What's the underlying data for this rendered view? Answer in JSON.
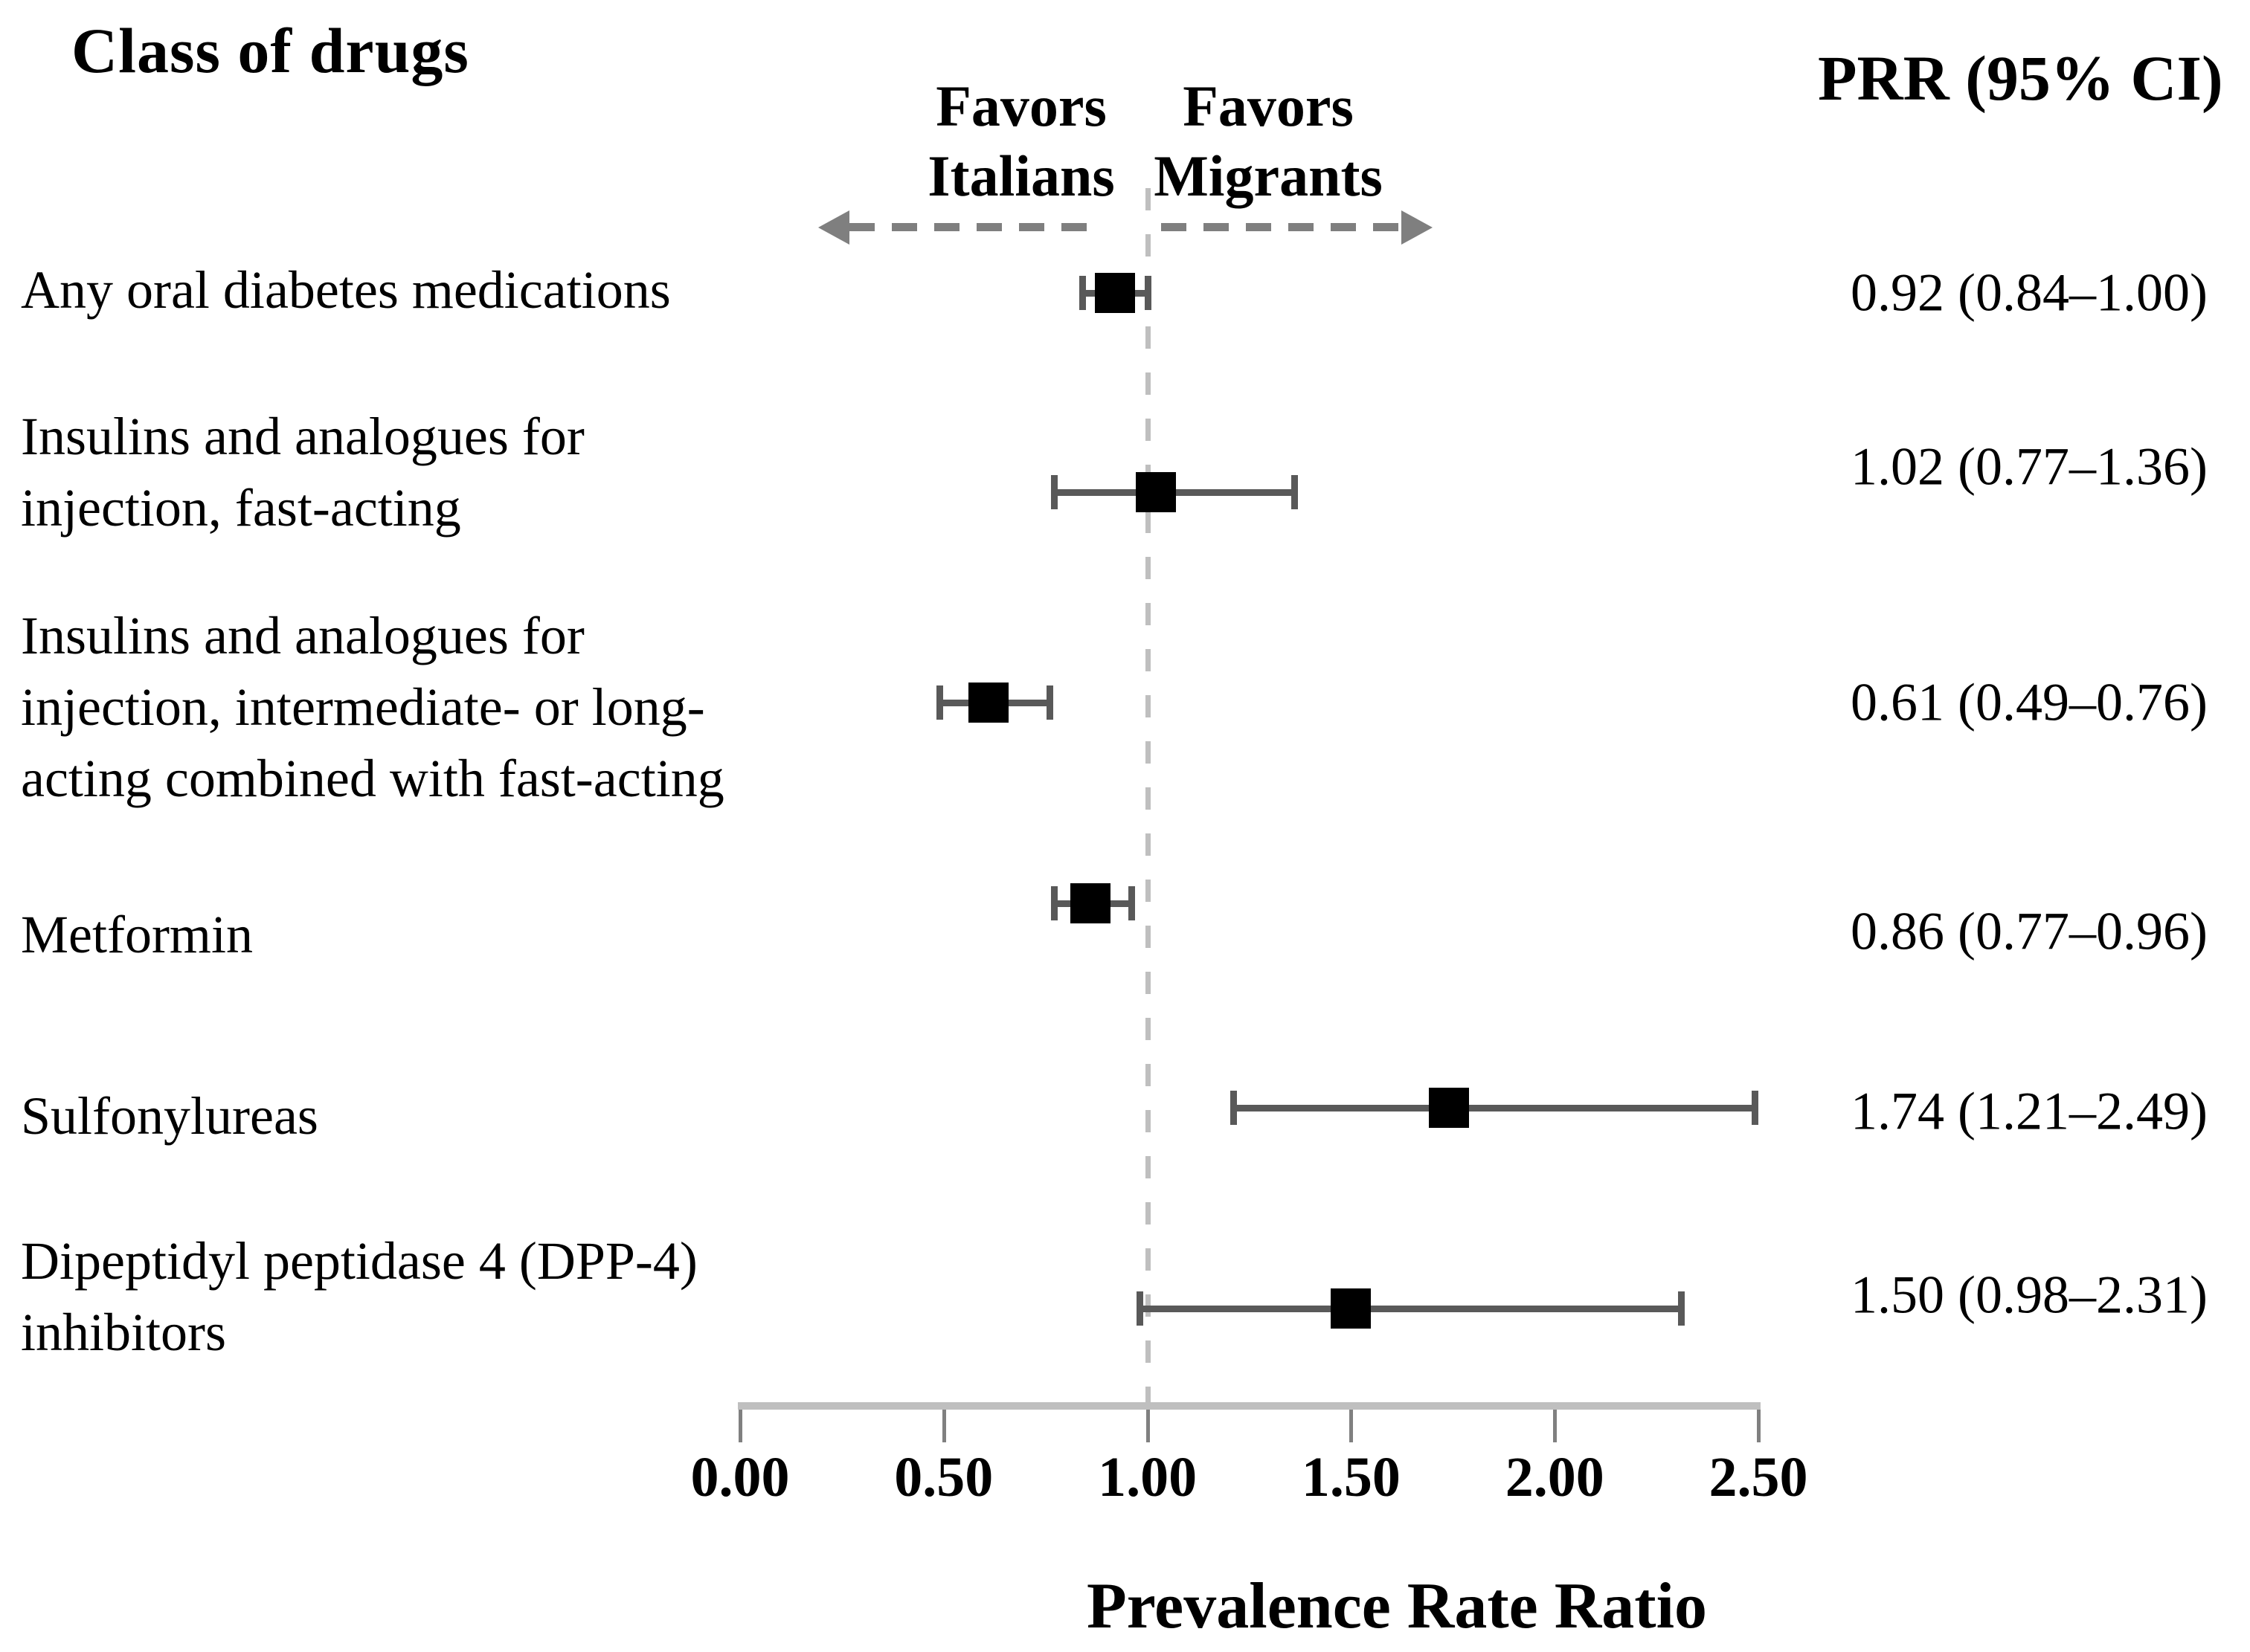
{
  "title": "Class of drugs",
  "prr_header": "PRR (95% CI)",
  "favors_left": "Favors\nItalians",
  "favors_right": "Favors\nMigrants",
  "axis": {
    "label": "Prevalence Rate Ratio",
    "tick_labels": [
      "0.00",
      "0.50",
      "1.00",
      "1.50",
      "2.00",
      "2.50"
    ],
    "tick_values": [
      0.0,
      0.5,
      1.0,
      1.5,
      2.0,
      2.5
    ],
    "min": 0.0,
    "max": 2.5,
    "reference_line": 1.0
  },
  "colors": {
    "marker": "#000000",
    "whisker": "#595959",
    "axis_line": "#bfbfbf",
    "tick": "#808080",
    "arrow": "#7f7f7f",
    "reference_dash": "#bfbfbf",
    "text": "#000000"
  },
  "chart_data": {
    "type": "scatter",
    "subtype": "forest-plot",
    "title": "Class of drugs",
    "xlabel": "Prevalence Rate Ratio",
    "xlim": [
      0.0,
      2.5
    ],
    "reference_line": 1.0,
    "value_column_header": "PRR (95% CI)",
    "direction_annotations": [
      "Favors Italians",
      "Favors Migrants"
    ],
    "rows": [
      {
        "label": "Any oral diabetes medications",
        "label_lines": [
          "Any oral diabetes medications"
        ],
        "prr": 0.92,
        "ci_low": 0.84,
        "ci_high": 1.0,
        "value_text": "0.92 (0.84–1.00)"
      },
      {
        "label": "Insulins and analogues for injection, fast-acting",
        "label_lines": [
          "Insulins and analogues for",
          "injection, fast-acting"
        ],
        "prr": 1.02,
        "ci_low": 0.77,
        "ci_high": 1.36,
        "value_text": "1.02 (0.77–1.36)"
      },
      {
        "label": "Insulins and analogues for injection, intermediate- or long-acting combined with fast-acting",
        "label_lines": [
          "Insulins and analogues for",
          "injection, intermediate- or long-",
          "acting combined with fast-acting"
        ],
        "prr": 0.61,
        "ci_low": 0.49,
        "ci_high": 0.76,
        "value_text": "0.61 (0.49–0.76)"
      },
      {
        "label": "Metformin",
        "label_lines": [
          "Metformin"
        ],
        "prr": 0.86,
        "ci_low": 0.77,
        "ci_high": 0.96,
        "value_text": "0.86 (0.77–0.96)"
      },
      {
        "label": "Sulfonylureas",
        "label_lines": [
          "Sulfonylureas"
        ],
        "prr": 1.74,
        "ci_low": 1.21,
        "ci_high": 2.49,
        "value_text": "1.74 (1.21–2.49)"
      },
      {
        "label": "Dipeptidyl peptidase 4 (DPP-4) inhibitors",
        "label_lines": [
          "Dipeptidyl  peptidase 4 (DPP-4)",
          "inhibitors"
        ],
        "prr": 1.5,
        "ci_low": 0.98,
        "ci_high": 2.31,
        "value_text": "1.50 (0.98–2.31)"
      }
    ]
  }
}
